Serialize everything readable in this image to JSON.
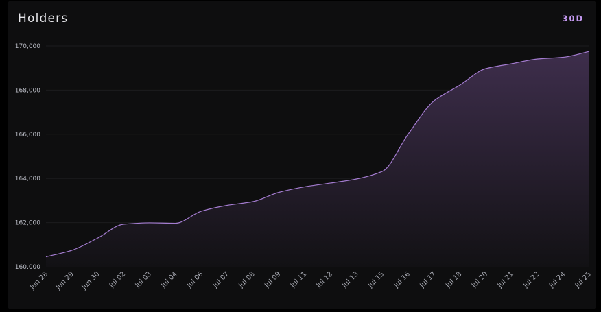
{
  "header": {
    "title": "Holders",
    "range_label": "30D"
  },
  "colors": {
    "card_bg": "#0e0e0f",
    "line": "#a47cd0",
    "fill_top": "#3e2e4c",
    "fill_bottom": "#121114",
    "grid": "#1c1c1f",
    "accent": "#c59af2"
  },
  "chart_data": {
    "type": "area",
    "title": "Holders",
    "xlabel": "",
    "ylabel": "",
    "ylim": [
      160000,
      170000
    ],
    "yticks": [
      160000,
      162000,
      164000,
      166000,
      168000,
      170000
    ],
    "ytick_labels": [
      "160,000",
      "162,000",
      "164,000",
      "166,000",
      "168,000",
      "170,000"
    ],
    "grid": true,
    "legend": null,
    "categories": [
      "Jun 28",
      "Jun 29",
      "Jun 30",
      "Jul 02",
      "Jul 03",
      "Jul 04",
      "Jul 06",
      "Jul 07",
      "Jul 08",
      "Jul 09",
      "Jul 11",
      "Jul 12",
      "Jul 13",
      "Jul 15",
      "Jul 16",
      "Jul 17",
      "Jul 18",
      "Jul 20",
      "Jul 21",
      "Jul 22",
      "Jul 24",
      "Jul 25"
    ],
    "series": [
      {
        "name": "Holders",
        "values": [
          160450,
          160745,
          161300,
          161925,
          161990,
          161970,
          162515,
          162780,
          162950,
          163370,
          163620,
          163790,
          163975,
          164320,
          166010,
          167515,
          168230,
          168975,
          169195,
          169410,
          169490,
          169750
        ]
      }
    ]
  }
}
